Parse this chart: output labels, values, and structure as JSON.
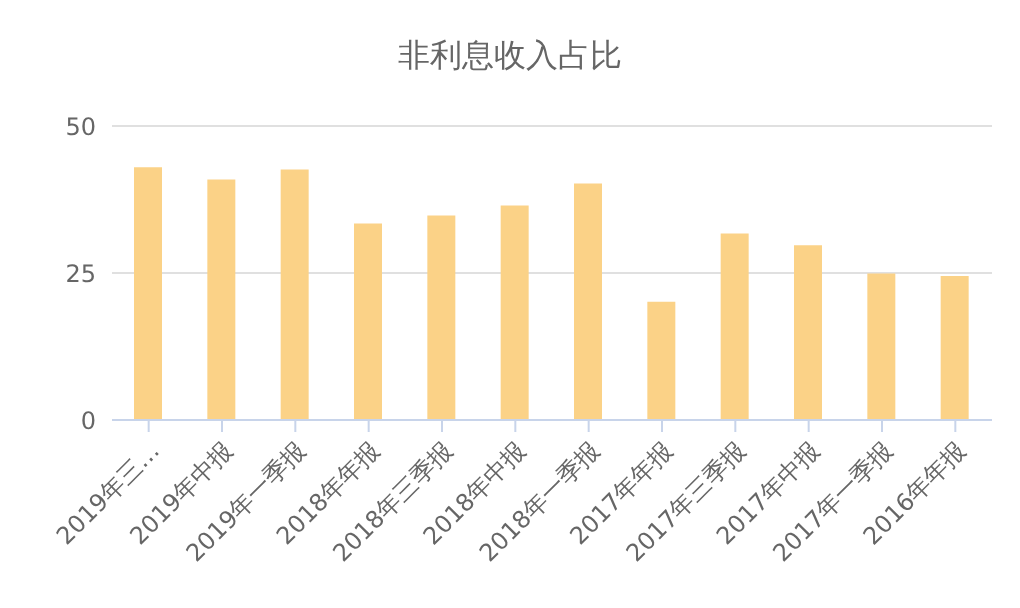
{
  "chart_data": {
    "type": "bar",
    "title": "非利息收入占比",
    "categories": [
      "2019年三…",
      "2019年中报",
      "2019年一季报",
      "2018年年报",
      "2018年三季报",
      "2018年中报",
      "2018年一季报",
      "2017年年报",
      "2017年三季报",
      "2017年中报",
      "2017年一季报",
      "2016年年报"
    ],
    "values": [
      43,
      40.9,
      42.6,
      33.4,
      34.8,
      36.5,
      40.2,
      20.1,
      31.7,
      29.7,
      24.9,
      24.5
    ],
    "color": "#fbd287",
    "ylim": [
      0,
      50
    ],
    "yticks": [
      0,
      25,
      50
    ],
    "grid": "y",
    "legend": false
  }
}
